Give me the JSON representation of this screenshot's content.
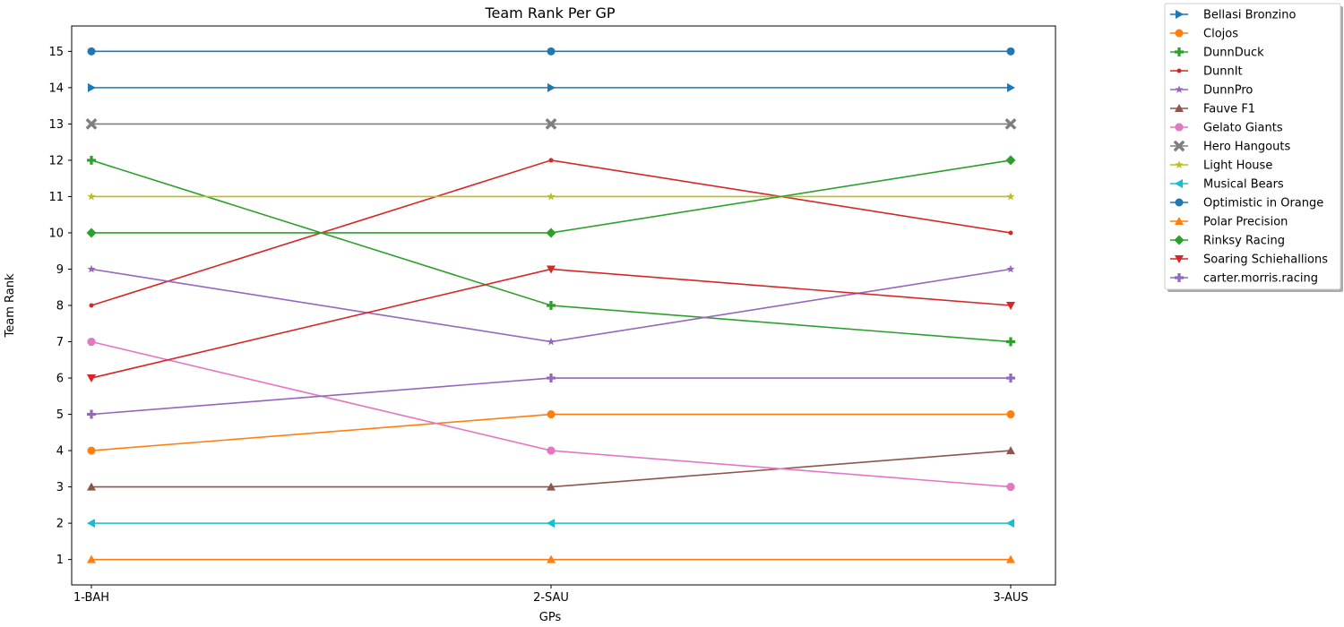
{
  "chart_data": {
    "type": "line",
    "title": "Team Rank Per GP",
    "xlabel": "GPs",
    "ylabel": "Team Rank",
    "categories": [
      "1-BAH",
      "2-SAU",
      "3-AUS"
    ],
    "yticks": [
      1,
      2,
      3,
      4,
      5,
      6,
      7,
      8,
      9,
      10,
      11,
      12,
      13,
      14,
      15
    ],
    "ylim": [
      0.3,
      15.7
    ],
    "grid": false,
    "legend_position": "outside-top-right",
    "series": [
      {
        "name": "Bellasi Bronzino",
        "values": [
          14,
          14,
          14
        ],
        "color": "#1f77b4",
        "marker": "triangle-right"
      },
      {
        "name": "Clojos",
        "values": [
          4,
          5,
          5
        ],
        "color": "#ff7f0e",
        "marker": "circle"
      },
      {
        "name": "DunnDuck",
        "values": [
          12,
          8,
          7
        ],
        "color": "#2ca02c",
        "marker": "plus"
      },
      {
        "name": "DunnIt",
        "values": [
          8,
          12,
          10
        ],
        "color": "#d62728",
        "marker": "point"
      },
      {
        "name": "DunnPro",
        "values": [
          9,
          7,
          9
        ],
        "color": "#9467bd",
        "marker": "star"
      },
      {
        "name": "Fauve F1",
        "values": [
          3,
          3,
          4
        ],
        "color": "#8c564b",
        "marker": "triangle-up"
      },
      {
        "name": "Gelato Giants",
        "values": [
          7,
          4,
          3
        ],
        "color": "#e377c2",
        "marker": "octagon"
      },
      {
        "name": "Hero Hangouts",
        "values": [
          13,
          13,
          13
        ],
        "color": "#7f7f7f",
        "marker": "x"
      },
      {
        "name": "Light House",
        "values": [
          11,
          11,
          11
        ],
        "color": "#bcbd22",
        "marker": "star"
      },
      {
        "name": "Musical Bears",
        "values": [
          2,
          2,
          2
        ],
        "color": "#17becf",
        "marker": "triangle-left"
      },
      {
        "name": "Optimistic in Orange",
        "values": [
          15,
          15,
          15
        ],
        "color": "#1f77b4",
        "marker": "circle"
      },
      {
        "name": "Polar Precision",
        "values": [
          1,
          1,
          1
        ],
        "color": "#ff7f0e",
        "marker": "triangle-up"
      },
      {
        "name": "Rinksy Racing",
        "values": [
          10,
          10,
          12
        ],
        "color": "#2ca02c",
        "marker": "diamond"
      },
      {
        "name": "Soaring Schiehallions",
        "values": [
          6,
          9,
          8
        ],
        "color": "#d62728",
        "marker": "triangle-down"
      },
      {
        "name": "carter.morris.racing",
        "values": [
          5,
          6,
          6
        ],
        "color": "#9467bd",
        "marker": "plus"
      }
    ]
  }
}
